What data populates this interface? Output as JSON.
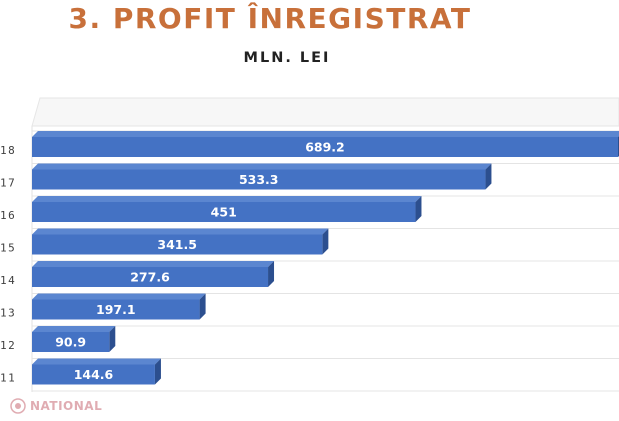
{
  "chart_data": {
    "type": "bar",
    "orientation": "horizontal",
    "title": "3. PROFIT ÎNREGISTRAT",
    "subtitle": "MLN. LEI",
    "categories": [
      "18",
      "17",
      "16",
      "15",
      "14",
      "13",
      "12",
      "11"
    ],
    "values": [
      689.2,
      533.3,
      451,
      341.5,
      277.6,
      197.1,
      90.9,
      144.6
    ],
    "value_labels": [
      "689.2",
      "533.3",
      "451",
      "341.5",
      "277.6",
      "197.1",
      "90.9",
      "144.6"
    ],
    "xlim": [
      0,
      689.2
    ],
    "grid": true,
    "legend": "none",
    "bar_color": "#4472c4"
  },
  "watermark": {
    "text": "NATIONAL",
    "color": "#c76a74",
    "icon": "national-logo-icon"
  }
}
